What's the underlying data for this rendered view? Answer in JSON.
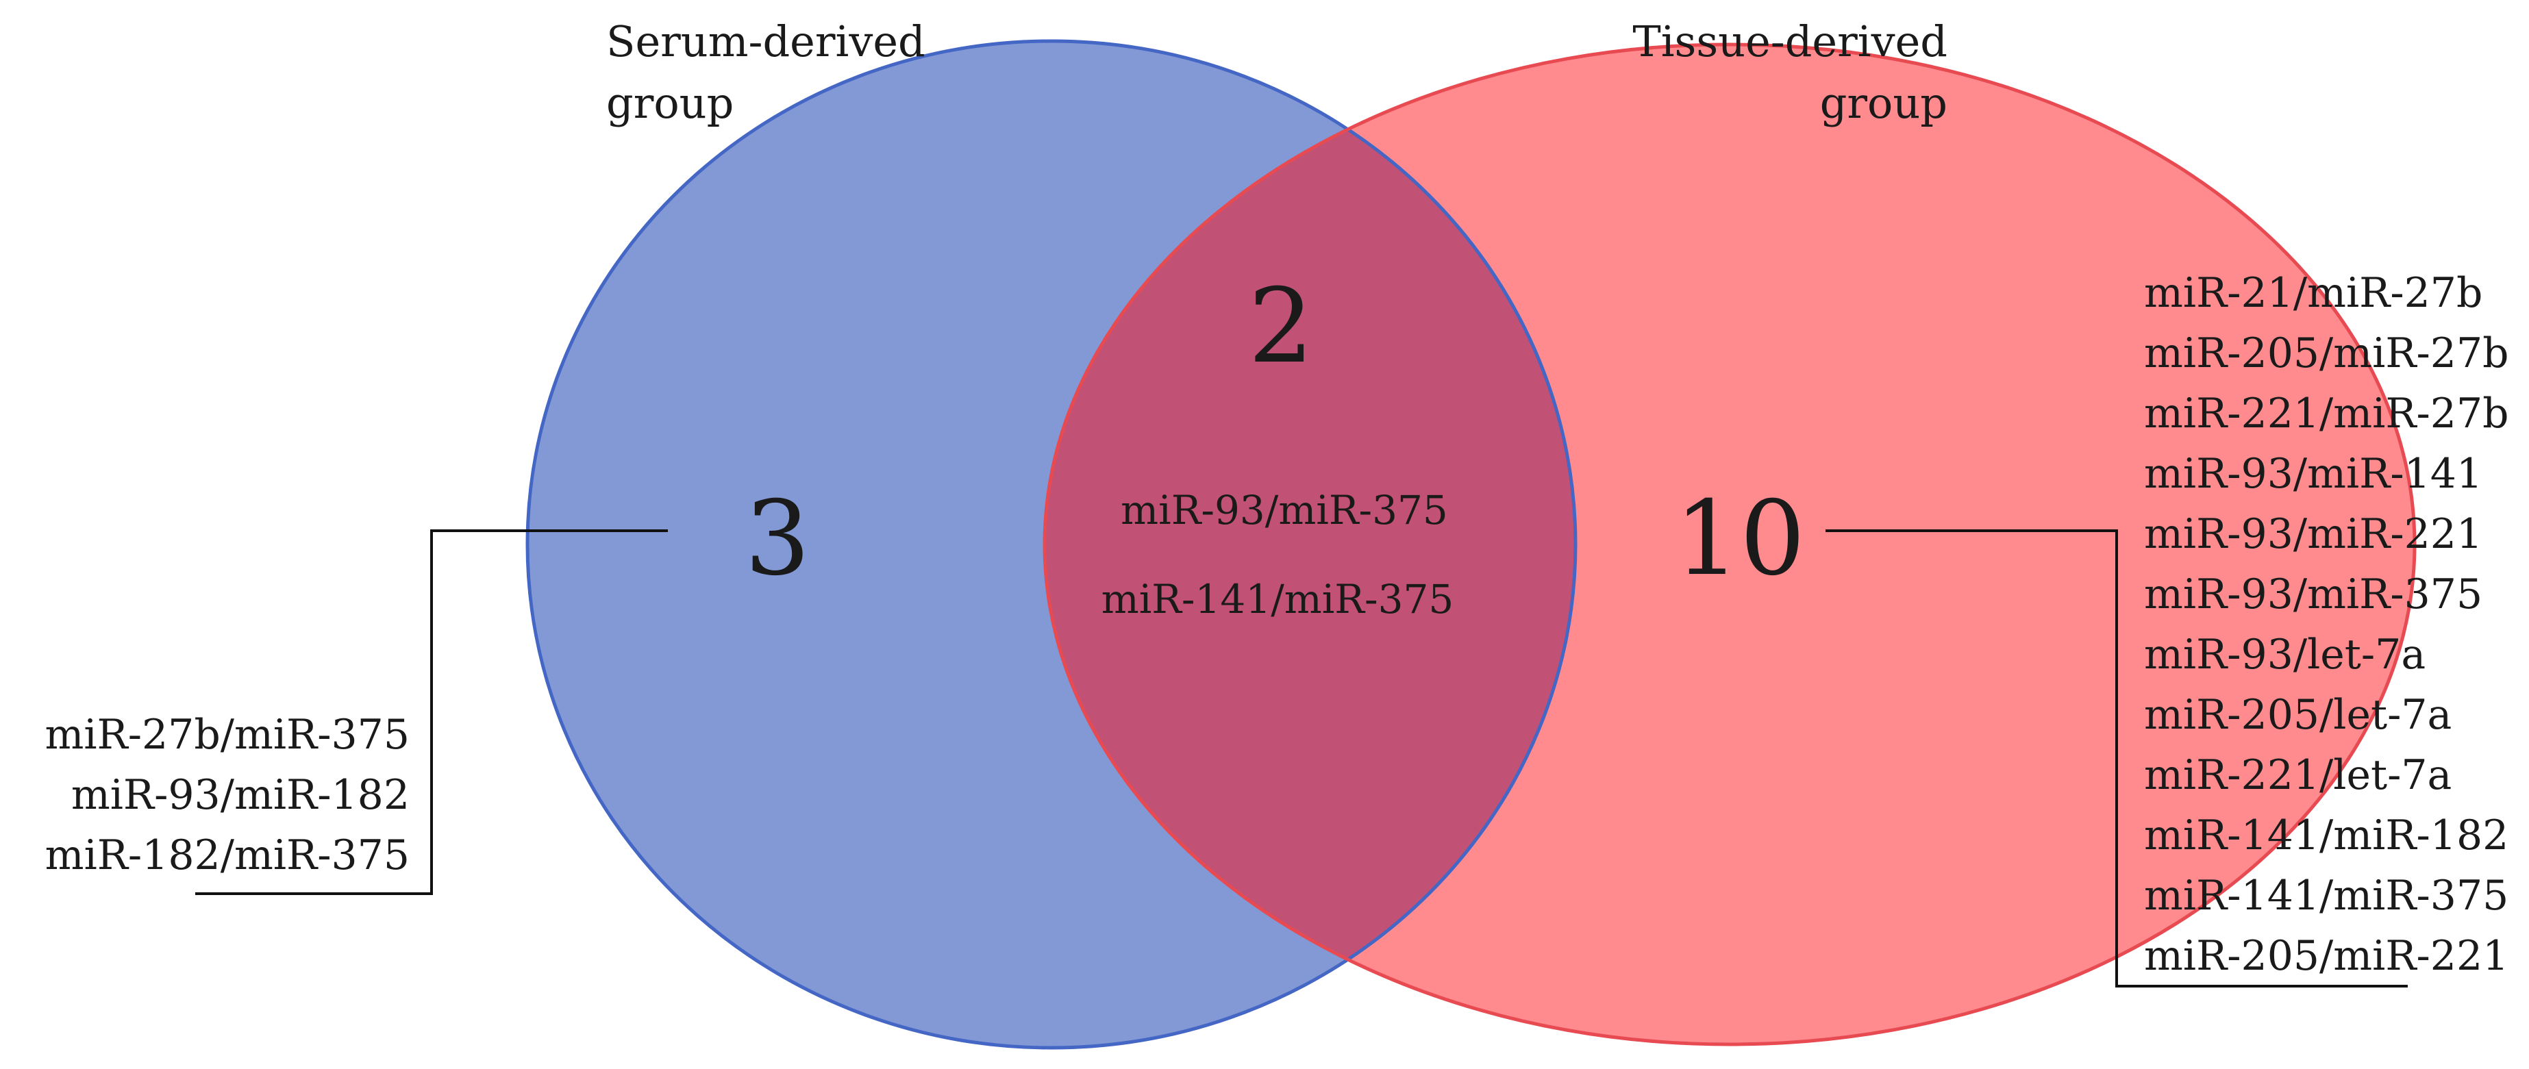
{
  "sets": {
    "serum": {
      "title_lines": [
        "Serum-derived",
        "group"
      ],
      "count": "3",
      "fill": "#8399d6",
      "stroke": "#4466c4",
      "members": [
        "miR-27b/miR-375",
        "miR-93/miR-182",
        "miR-182/miR-375"
      ]
    },
    "tissue": {
      "title_lines": [
        "Tissue-derived",
        "group"
      ],
      "count": "10",
      "fill": "#ff8b8e",
      "stroke": "#e84a52",
      "members": [
        "miR-21/miR-27b",
        "miR-205/miR-27b",
        "miR-221/miR-27b",
        "miR-93/miR-141",
        "miR-93/miR-221",
        "miR-93/miR-375",
        "miR-93/let-7a",
        "miR-205/let-7a",
        "miR-221/let-7a",
        "miR-141/miR-182",
        "miR-141/miR-375",
        "miR-205/miR-221"
      ]
    }
  },
  "overlap": {
    "count": "2",
    "fill": "#c25176",
    "members": [
      "miR-93/miR-375",
      "miR-141/miR-375"
    ]
  }
}
